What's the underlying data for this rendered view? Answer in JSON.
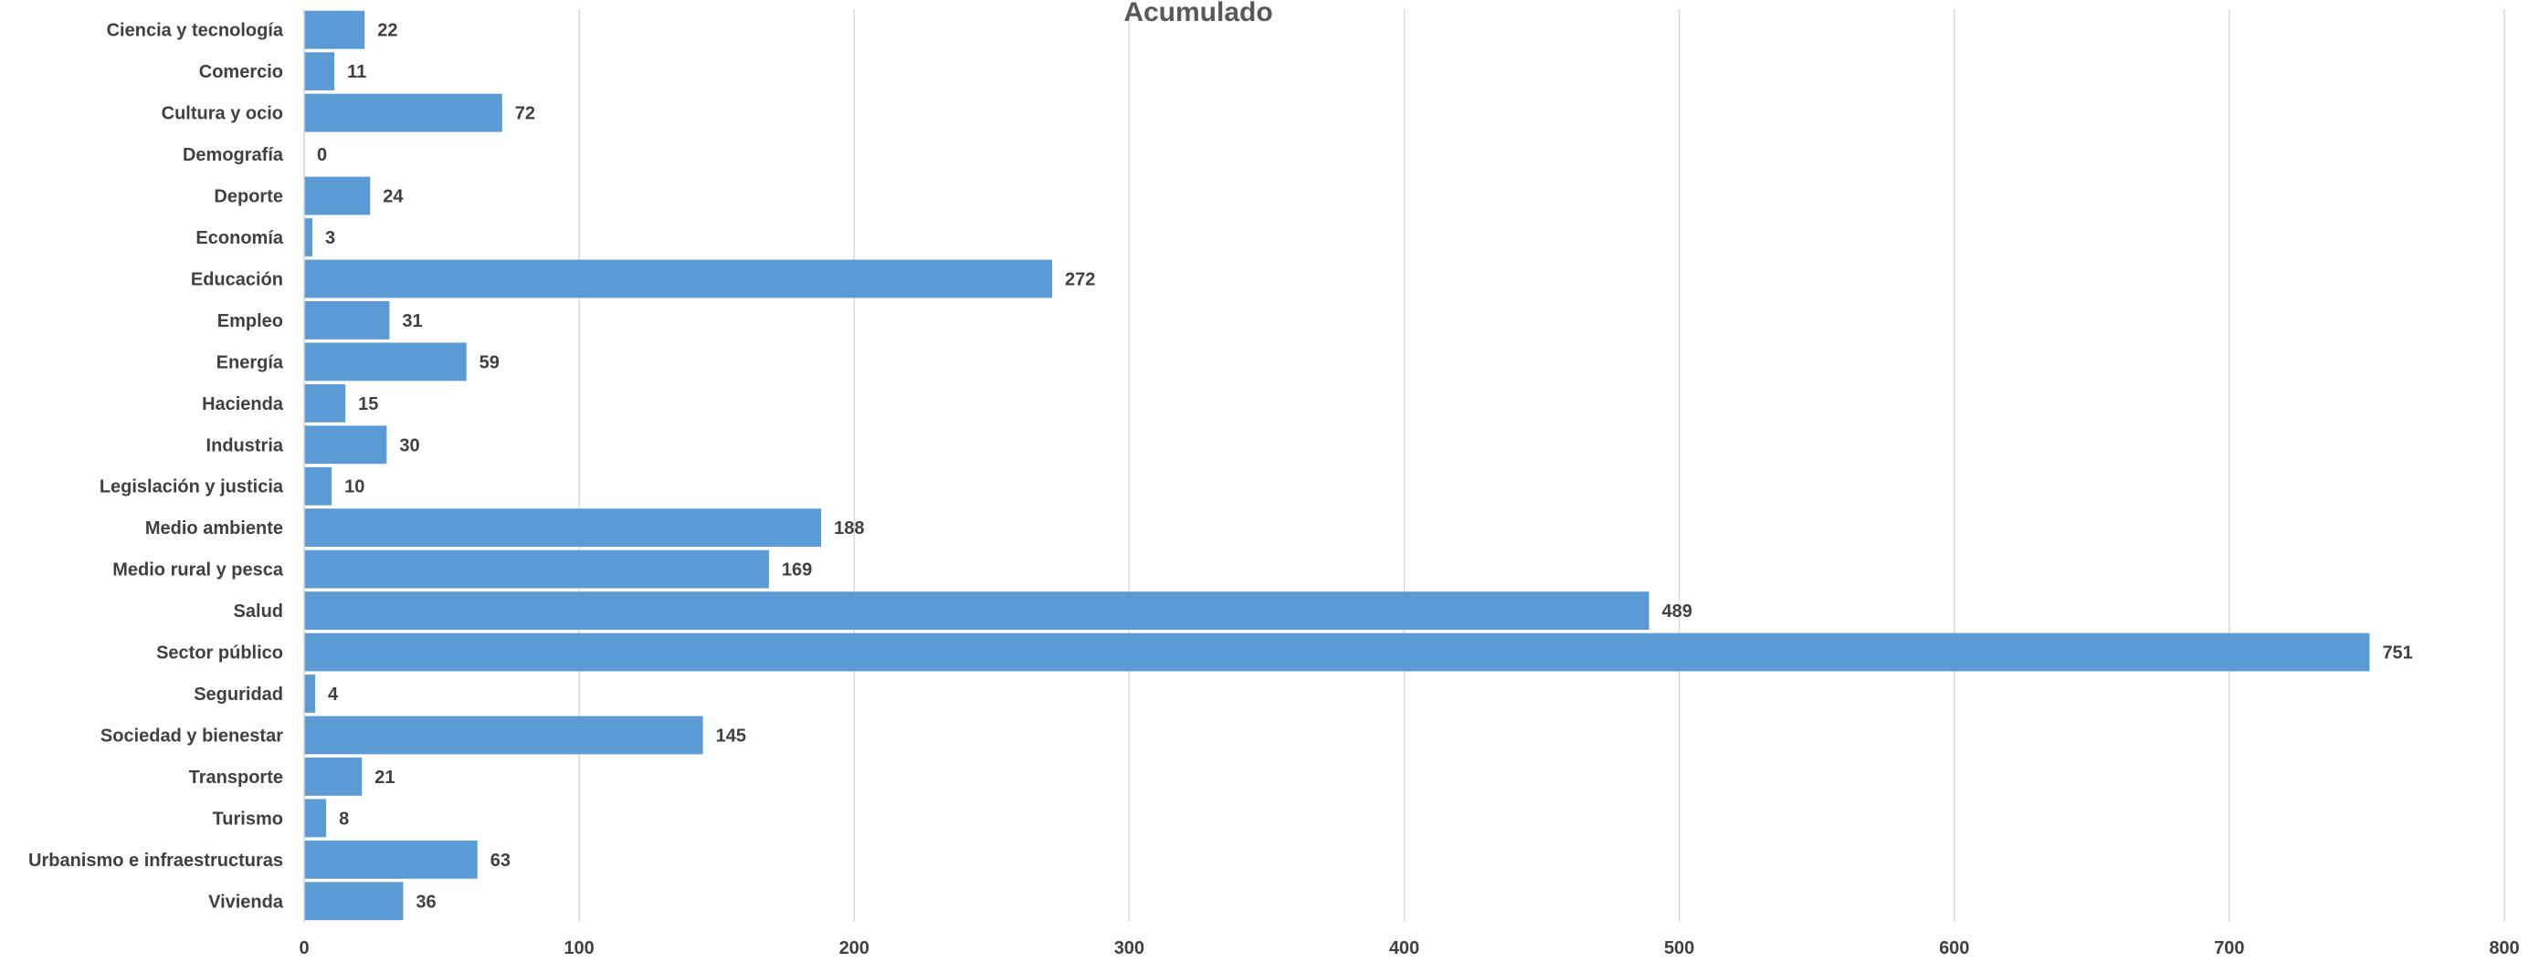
{
  "chart_data": {
    "type": "bar",
    "orientation": "horizontal",
    "title": "Acumulado",
    "xlabel": "",
    "ylabel": "",
    "xlim": [
      0,
      800
    ],
    "x_ticks": [
      0,
      100,
      200,
      300,
      400,
      500,
      600,
      700,
      800
    ],
    "grid": "vertical",
    "legend": "none",
    "bar_color": "#5b9bd5",
    "gridline_color": "#d9d9d9",
    "categories": [
      "Ciencia y tecnología",
      "Comercio",
      "Cultura y ocio",
      "Demografía",
      "Deporte",
      "Economía",
      "Educación",
      "Empleo",
      "Energía",
      "Hacienda",
      "Industria",
      "Legislación y justicia",
      "Medio ambiente",
      "Medio rural y pesca",
      "Salud",
      "Sector público",
      "Seguridad",
      "Sociedad y bienestar",
      "Transporte",
      "Turismo",
      "Urbanismo e infraestructuras",
      "Vivienda"
    ],
    "values": [
      22,
      11,
      72,
      0,
      24,
      3,
      272,
      31,
      59,
      15,
      30,
      10,
      188,
      169,
      489,
      751,
      4,
      145,
      21,
      8,
      63,
      36
    ]
  }
}
